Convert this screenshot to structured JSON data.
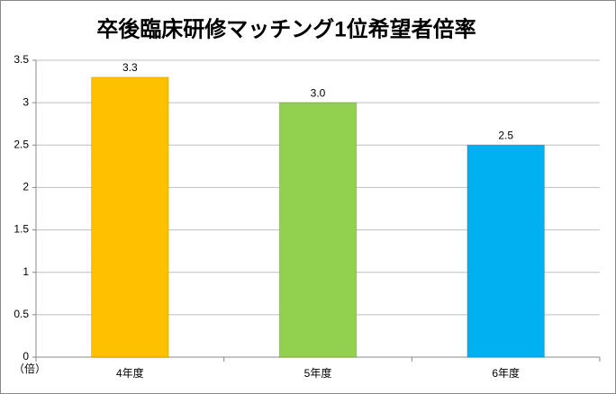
{
  "chart_data": {
    "type": "bar",
    "title": "卒後臨床研修マッチング1位希望者倍率",
    "y_unit_label": "（倍）",
    "categories": [
      "4年度",
      "5年度",
      "6年度"
    ],
    "values": [
      3.3,
      3.0,
      2.5
    ],
    "value_labels": [
      "3.3",
      "3.0",
      "2.5"
    ],
    "colors": [
      "#ffc000",
      "#92d050",
      "#00b0f0"
    ],
    "ylim": [
      0,
      3.5
    ],
    "yticks": [
      0,
      0.5,
      1,
      1.5,
      2,
      2.5,
      3,
      3.5
    ],
    "grid": true
  }
}
